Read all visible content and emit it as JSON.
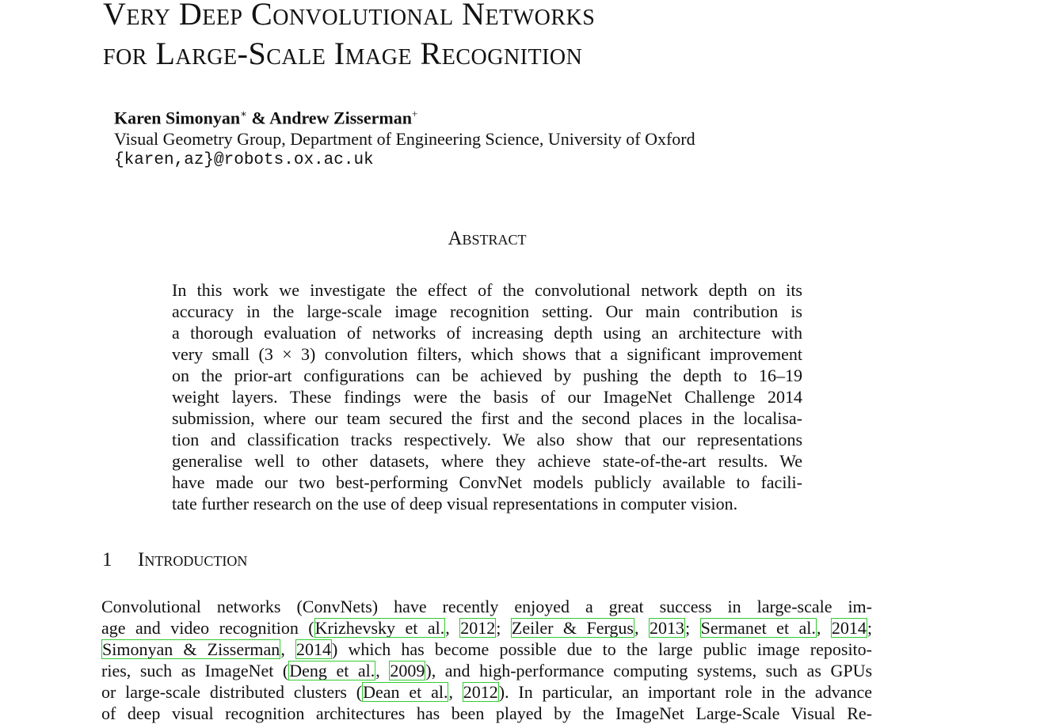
{
  "title": {
    "lines": [
      "Very Deep Convolutional Networks",
      "for Large-Scale Image Recognition"
    ]
  },
  "authors": {
    "first": "Karen Simonyan",
    "first_mark": "∗",
    "joiner": "& Andrew Zisserman",
    "second_mark": "+",
    "affiliation": "Visual Geometry Group, Department of Engineering Science, University of Oxford",
    "email": "{karen,az}@robots.ox.ac.uk"
  },
  "abstract": {
    "heading": "Abstract",
    "lines": [
      "In this work we investigate the effect of the convolutional network depth on its",
      "accuracy in the large-scale image recognition setting.  Our main contribution is",
      "a thorough evaluation of networks of increasing depth using an architecture with",
      "very small (3 × 3) convolution filters, which shows that a significant improvement",
      "on the prior-art configurations can be achieved by pushing the depth to 16–19",
      "weight layers.  These findings were the basis of our ImageNet Challenge 2014",
      "submission, where our team secured the first and the second places in the localisa-",
      "tion and classification tracks respectively.  We also show that our representations",
      "generalise well to other datasets, where they achieve state-of-the-art results.  We",
      "have made our two best-performing ConvNet models publicly available to facili-",
      "tate further research on the use of deep visual representations in computer vision."
    ]
  },
  "introduction": {
    "number": "1",
    "heading": "Introduction",
    "lines": [
      [
        "Convolutional networks (ConvNets) have recently enjoyed a great success in large-scale im-"
      ],
      [
        "age and video recognition (",
        {
          "link": "Krizhevsky et al."
        },
        ", ",
        {
          "link": "2012"
        },
        "; ",
        {
          "link": "Zeiler & Fergus"
        },
        ", ",
        {
          "link": "2013"
        },
        "; ",
        {
          "link": "Sermanet et al."
        },
        ", ",
        {
          "link": "2014"
        },
        ";"
      ],
      [
        {
          "link": "Simonyan & Zisserman"
        },
        ", ",
        {
          "link": "2014"
        },
        ") which has become possible due to the large public image reposito-"
      ],
      [
        "ries, such as ImageNet (",
        {
          "link": "Deng et al."
        },
        ", ",
        {
          "link": "2009"
        },
        "), and high-performance computing systems, such as GPUs"
      ],
      [
        "or large-scale distributed clusters (",
        {
          "link": "Dean et al."
        },
        ", ",
        {
          "link": "2012"
        },
        ").  In particular, an important role in the advance"
      ],
      [
        "of deep visual recognition architectures has been played by the ImageNet Large-Scale Visual Re-"
      ]
    ]
  }
}
